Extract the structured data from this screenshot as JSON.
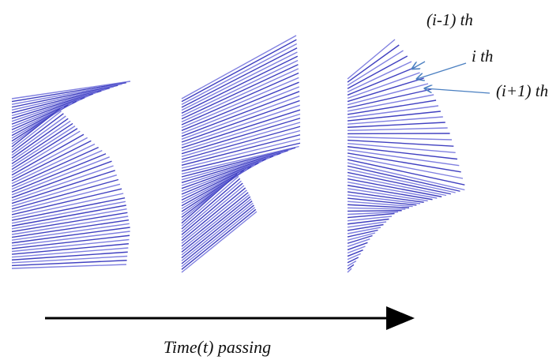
{
  "labels": {
    "prev": "(i-1) th",
    "current": "i th",
    "next": "(i+1) th"
  },
  "axis_label": "Time(t) passing"
}
